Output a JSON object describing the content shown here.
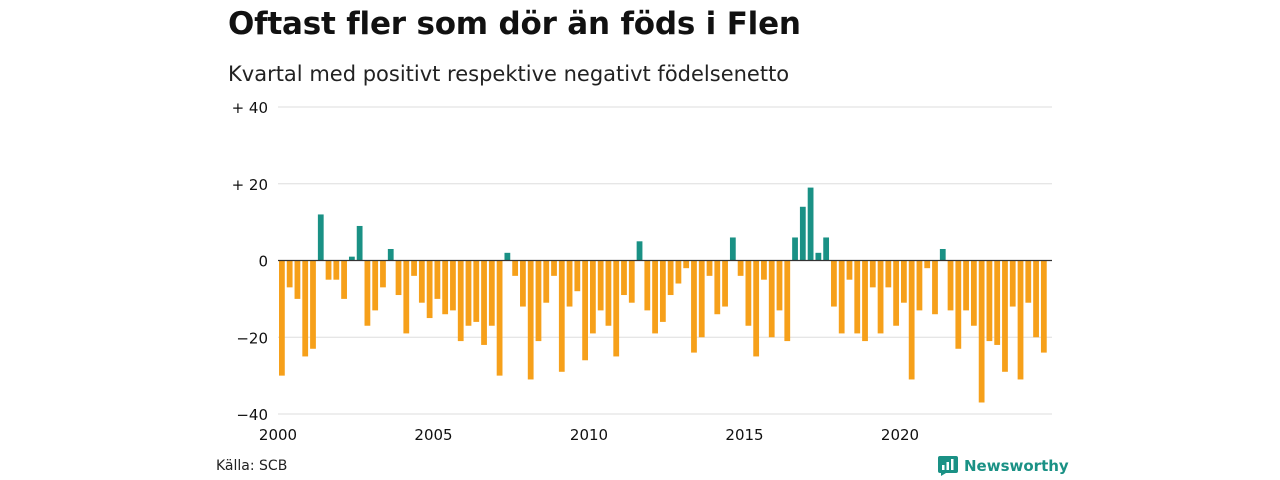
{
  "header": {
    "title": "Oftast fler som dör än föds i Flen",
    "subtitle": "Kvartal med positivt respektive negativt födelsenetto"
  },
  "footer": {
    "source": "Källa: SCB",
    "brand": "Newsworthy",
    "brand_icon": "newsworthy-logo-icon"
  },
  "colors": {
    "positive": "#1a9185",
    "negative": "#f6a01a",
    "grid": "#dddddd",
    "zero_line": "#333333",
    "brand": "#1a9185"
  },
  "chart_data": {
    "type": "bar",
    "x_start": "2000 Q1",
    "x_ticks": [
      2000,
      2005,
      2010,
      2015,
      2020
    ],
    "x_tick_labels": [
      "2000",
      "2005",
      "2010",
      "2015",
      "2020"
    ],
    "y_ticks": [
      40,
      20,
      0,
      -20,
      -40
    ],
    "y_tick_labels": [
      "+ 40",
      "+ 20",
      "0",
      "−20",
      "−40"
    ],
    "ylim": [
      -40,
      40
    ],
    "grid": true,
    "legend": "none",
    "values": [
      -30,
      -7,
      -10,
      -25,
      -23,
      12,
      -5,
      -5,
      -10,
      1,
      9,
      -17,
      -13,
      -7,
      3,
      -9,
      -19,
      -4,
      -11,
      -15,
      -10,
      -14,
      -13,
      -21,
      -17,
      -16,
      -22,
      -17,
      -30,
      2,
      -4,
      -12,
      -31,
      -21,
      -11,
      -4,
      -29,
      -12,
      -8,
      -26,
      -19,
      -13,
      -17,
      -25,
      -9,
      -11,
      5,
      -13,
      -19,
      -16,
      -9,
      -6,
      -2,
      -24,
      -20,
      -4,
      -14,
      -12,
      6,
      -4,
      -17,
      -25,
      -5,
      -20,
      -13,
      -21,
      6,
      14,
      19,
      2,
      6,
      -12,
      -19,
      -5,
      -19,
      -21,
      -7,
      -19,
      -7,
      -17,
      -11,
      -31,
      -13,
      -2,
      -14,
      3,
      -13,
      -23,
      -13,
      -17,
      -37,
      -21,
      -22,
      -29,
      -12,
      -31,
      -11,
      -20,
      -24
    ]
  }
}
